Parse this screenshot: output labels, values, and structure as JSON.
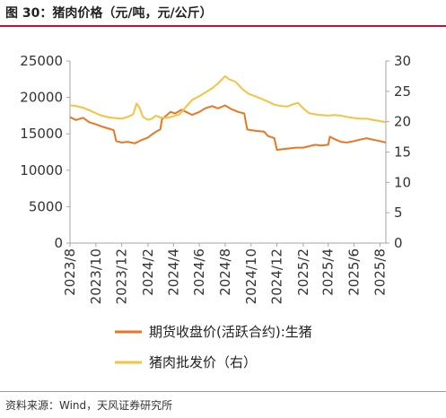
{
  "header": {
    "title": "图 30：猪肉价格（元/吨，元/公斤）"
  },
  "footer": {
    "source": "资料来源：Wind，天风证券研究所"
  },
  "colors": {
    "futures": "#e87722",
    "wholesale": "#f5c242",
    "axis": "#a6a6a6",
    "title_rule": "#c8102e"
  },
  "chart_data": {
    "type": "line",
    "x_tick_labels": [
      "2023/8",
      "2023/10",
      "2023/12",
      "2024/2",
      "2024/4",
      "2024/6",
      "2024/8",
      "2024/10",
      "2024/12",
      "2025/2",
      "2025/4",
      "2025/6",
      "2025/8"
    ],
    "y_left": {
      "min": 0,
      "max": 25000,
      "ticks": [
        "0",
        "5000",
        "10000",
        "15000",
        "20000",
        "25000"
      ]
    },
    "y_right": {
      "min": 0,
      "max": 30,
      "ticks": [
        "0",
        "5",
        "10",
        "15",
        "20",
        "25",
        "30"
      ]
    },
    "legend_position": "bottom",
    "series": [
      {
        "name": "期货收盘价(活跃合约):生猪",
        "axis": "left",
        "color": "#e87722",
        "points": [
          [
            "2023-08-01",
            17300
          ],
          [
            "2023-08-15",
            16900
          ],
          [
            "2023-09-01",
            17200
          ],
          [
            "2023-09-15",
            16600
          ],
          [
            "2023-10-01",
            16300
          ],
          [
            "2023-10-15",
            16000
          ],
          [
            "2023-11-01",
            15700
          ],
          [
            "2023-11-12",
            15500
          ],
          [
            "2023-11-18",
            14000
          ],
          [
            "2023-12-01",
            13800
          ],
          [
            "2023-12-15",
            13900
          ],
          [
            "2024-01-01",
            13700
          ],
          [
            "2024-01-15",
            14100
          ],
          [
            "2024-02-01",
            14500
          ],
          [
            "2024-02-10",
            14900
          ],
          [
            "2024-02-20",
            15300
          ],
          [
            "2024-03-01",
            15600
          ],
          [
            "2024-03-05",
            17000
          ],
          [
            "2024-03-15",
            17500
          ],
          [
            "2024-03-25",
            18000
          ],
          [
            "2024-04-05",
            17800
          ],
          [
            "2024-04-20",
            18300
          ],
          [
            "2024-05-01",
            18000
          ],
          [
            "2024-05-15",
            17600
          ],
          [
            "2024-06-01",
            18000
          ],
          [
            "2024-06-15",
            18500
          ],
          [
            "2024-07-01",
            18800
          ],
          [
            "2024-07-15",
            18500
          ],
          [
            "2024-08-01",
            18900
          ],
          [
            "2024-08-15",
            18400
          ],
          [
            "2024-09-01",
            18000
          ],
          [
            "2024-09-15",
            17800
          ],
          [
            "2024-09-22",
            15600
          ],
          [
            "2024-10-01",
            15500
          ],
          [
            "2024-10-15",
            15400
          ],
          [
            "2024-11-01",
            15300
          ],
          [
            "2024-11-10",
            14700
          ],
          [
            "2024-11-25",
            14400
          ],
          [
            "2024-12-01",
            12800
          ],
          [
            "2024-12-15",
            12900
          ],
          [
            "2025-01-01",
            13000
          ],
          [
            "2025-01-15",
            13100
          ],
          [
            "2025-02-01",
            13100
          ],
          [
            "2025-02-15",
            13300
          ],
          [
            "2025-03-01",
            13500
          ],
          [
            "2025-03-15",
            13400
          ],
          [
            "2025-04-01",
            13500
          ],
          [
            "2025-04-05",
            14600
          ],
          [
            "2025-04-15",
            14300
          ],
          [
            "2025-05-01",
            13900
          ],
          [
            "2025-05-15",
            13800
          ],
          [
            "2025-06-01",
            14000
          ],
          [
            "2025-06-15",
            14200
          ],
          [
            "2025-07-01",
            14400
          ],
          [
            "2025-07-15",
            14200
          ],
          [
            "2025-08-01",
            14000
          ],
          [
            "2025-08-15",
            13800
          ]
        ]
      },
      {
        "name": "猪肉批发价（右）",
        "axis": "right",
        "color": "#f5c242",
        "points": [
          [
            "2023-08-01",
            22.7
          ],
          [
            "2023-08-15",
            22.6
          ],
          [
            "2023-09-01",
            22.3
          ],
          [
            "2023-09-15",
            21.9
          ],
          [
            "2023-10-01",
            21.4
          ],
          [
            "2023-10-15",
            21.0
          ],
          [
            "2023-11-01",
            20.7
          ],
          [
            "2023-11-15",
            20.6
          ],
          [
            "2023-12-01",
            20.5
          ],
          [
            "2023-12-15",
            20.8
          ],
          [
            "2023-12-28",
            21.2
          ],
          [
            "2024-01-05",
            23.0
          ],
          [
            "2024-01-12",
            22.3
          ],
          [
            "2024-01-20",
            20.8
          ],
          [
            "2024-02-01",
            20.3
          ],
          [
            "2024-02-10",
            20.5
          ],
          [
            "2024-02-20",
            21.0
          ],
          [
            "2024-03-01",
            20.7
          ],
          [
            "2024-03-15",
            20.6
          ],
          [
            "2024-04-01",
            20.9
          ],
          [
            "2024-04-15",
            21.2
          ],
          [
            "2024-05-01",
            22.5
          ],
          [
            "2024-05-15",
            23.6
          ],
          [
            "2024-06-01",
            24.2
          ],
          [
            "2024-06-15",
            24.8
          ],
          [
            "2024-07-01",
            25.5
          ],
          [
            "2024-07-15",
            26.3
          ],
          [
            "2024-08-01",
            27.5
          ],
          [
            "2024-08-10",
            27.0
          ],
          [
            "2024-08-25",
            26.6
          ],
          [
            "2024-09-10",
            25.4
          ],
          [
            "2024-09-25",
            24.6
          ],
          [
            "2024-10-10",
            24.2
          ],
          [
            "2024-10-25",
            23.8
          ],
          [
            "2024-11-10",
            23.3
          ],
          [
            "2024-11-25",
            22.8
          ],
          [
            "2024-12-10",
            22.6
          ],
          [
            "2024-12-25",
            22.5
          ],
          [
            "2025-01-10",
            22.9
          ],
          [
            "2025-01-20",
            23.1
          ],
          [
            "2025-02-01",
            22.2
          ],
          [
            "2025-02-15",
            21.4
          ],
          [
            "2025-03-01",
            21.2
          ],
          [
            "2025-03-15",
            21.1
          ],
          [
            "2025-04-01",
            21.0
          ],
          [
            "2025-04-15",
            21.1
          ],
          [
            "2025-05-01",
            21.0
          ],
          [
            "2025-05-15",
            20.8
          ],
          [
            "2025-06-01",
            20.6
          ],
          [
            "2025-06-15",
            20.5
          ],
          [
            "2025-07-01",
            20.5
          ],
          [
            "2025-07-15",
            20.3
          ],
          [
            "2025-08-01",
            20.1
          ],
          [
            "2025-08-15",
            19.9
          ]
        ]
      }
    ]
  }
}
